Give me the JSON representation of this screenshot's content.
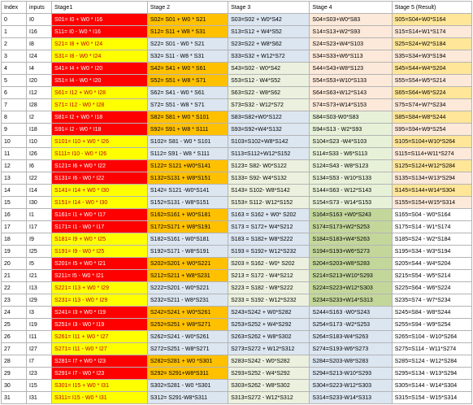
{
  "headers": [
    "Index",
    "inputs",
    "Stage1",
    "Stage 2",
    "Stage 3",
    "Stage 4",
    "Stage 5 (Result)"
  ],
  "colors": {
    "s1_bg": [
      "#ff0000",
      "#ffff00"
    ],
    "s1_text": [
      "#ffffff",
      "#c00000"
    ],
    "s2": [
      "#ffc000",
      "#dce6f1"
    ],
    "s3": [
      "#dce6f1",
      "#ebf1de"
    ],
    "s4": [
      "#fde9d9",
      "#e7f1d8",
      "#c4d79b",
      "#dce6f1"
    ],
    "s5": [
      "#ffffff",
      "#fde9d9",
      "#ffe699"
    ]
  },
  "rows": [
    [
      "0",
      "I0",
      "S01= I0 + W0 * I16",
      "S02= S01 + W0 * S21",
      "S03=S02 + W0*S42",
      "S04=S03+W0*S83",
      "S05=S04+W0*S164"
    ],
    [
      "1",
      "I16",
      "S11= I0 - W0 * I16",
      "S12= S11 + W8 * S31",
      "S13=S12 + W4*S52",
      "S14=S13+W2*S93",
      "S15=S14+W1*S174"
    ],
    [
      "2",
      "I8",
      "S21= I8 + W0 * I24",
      "S22= S01 - W0 * S21",
      "S23=S22 + W8*S62",
      "S24=S23+W4*S103",
      "S25=S24+W2*S184"
    ],
    [
      "3",
      "I24",
      "S31= I8 - W0 * I24",
      "S32= S11 - W8 * S31",
      "S33=S32 + W12*S72",
      "S34=S33+W6*S113",
      "S35=S34+W3*S194"
    ],
    [
      "4",
      "I4",
      "S41= I4 + W0 * I20",
      "S42= S41 + W0 * S61",
      "S43=S02 - W0*S42",
      "S44=S43+W8*S123",
      "S45=S44+W4*S204"
    ],
    [
      "5",
      "I20",
      "S51= I4 - W0 * I20",
      "S52= S51 + W8 * S71",
      "S53=S12 - W4*S52",
      "S54=S53+W10*S133",
      "S55=S54+W5*S214"
    ],
    [
      "6",
      "I12",
      "S61= I12 + W0 * I28",
      "S62= S41 - W0 * S61",
      "S63=S22 - W8*S62",
      "S64=S63+W12*S143",
      "S65=S64+W6*S224"
    ],
    [
      "7",
      "I28",
      "S71= I12 - W0 * I28",
      "S72= S51 - W8 * S71",
      "S73=S32 - W12*S72",
      "S74=S73+W14*S153",
      "S75=S74+W7*S234"
    ],
    [
      "8",
      "I2",
      "S81= I2 + W0 * I18",
      "S82= S81 + W0 * S101",
      "S83=S82+W0*S122",
      "S84=S03-W0*S83",
      "S85=S84+W8*S244"
    ],
    [
      "9",
      "I18",
      "S91= I2 - W0 * I18",
      "S92= S91 + W8 * S111",
      "S93=S92+W4*S132",
      "S94=S13 - W2*S93",
      "S95=S94+W9*S254"
    ],
    [
      "10",
      "I10",
      "S101= I10 + W0 * I26",
      "S102= S81 - W0 * S101",
      "S103=S102+W8*S142",
      "S104=S23 -W4*S103",
      "S105=S104+W10*S264"
    ],
    [
      "11",
      "I26",
      "S111= I10 - W0 * I26",
      "S112= S91 - W8 * S111",
      "S113=S112+W12*S152",
      "S114=S33 - W6*S113",
      "S115=S114+W11*S274"
    ],
    [
      "12",
      "I6",
      "S121= I6 + W0 * I22",
      "S122= S121 +W0*S141",
      "S123= S82- W0*S122",
      "S124=S43 - W8*S123",
      "S125=S124+W12*S284"
    ],
    [
      "13",
      "I22",
      "S131= I6 - W0 * I22",
      "S132=S131 + W8*S151",
      "S133= S92- W4*S132",
      "S134=S53 - W10*S133",
      "S135=S134+W13*S294"
    ],
    [
      "14",
      "I14",
      "S141= I14 + W0 * I30",
      "S142= S121 -W0*S141",
      "S143= S102- W8*S142",
      "S144=S63 - W12*S143",
      "S145=S144+W14*S304"
    ],
    [
      "15",
      "I30",
      "S151= I14 - W0 * I30",
      "S152=S131 - W8*S151",
      "S153= S112- W12*S152",
      "S154=S73 - W14*S153",
      "S155=S154+W15*S314"
    ],
    [
      "16",
      "I1",
      "S161= I1 + W0 * I17",
      "S162=S161 + W0*S181",
      "S163 = S162 + W0* S202",
      "S164=S163 +W0*S243",
      "S165=S04 - W0*S164"
    ],
    [
      "17",
      "I17",
      "S171= I1 - W0 * I17",
      "S172=S171 + W8*S191",
      "S173 = S172+ W4*S212",
      "S174=S173+W2*S253",
      "S175=S14 - W1*S174"
    ],
    [
      "18",
      "I9",
      "S181= I9 + W0 * I25",
      "S182=S161 - W0*S181",
      "S183 = S182+ W8*S222",
      "S184=S183+W4*S263",
      "S185=S24 - W2*S184"
    ],
    [
      "19",
      "I25",
      "S191= I9 - W0 * I25",
      "S192=S171 - W8*S191",
      "S193 = S192+ W12*S232",
      "S194=S193+W6*S273",
      "S195=S34 - W3*S194"
    ],
    [
      "20",
      "I5",
      "S201= I5 + W0 * I21",
      "S202=S201 + W0*S221",
      "S203 = S162 - W0* S202",
      "S204=S203+W8*S283",
      "S205=S44 - W4*S204"
    ],
    [
      "21",
      "I21",
      "S211= I5 - W0 * I21",
      "S212=S211 + W8*S231",
      "S213 = S172 - W4*S212",
      "S214=S213+W10*S293",
      "S215=S54 - W5*S214"
    ],
    [
      "22",
      "I13",
      "S221= I13 + W0 * I29",
      "S222=S201 - W0*S221",
      "S223 = S182 - W8*S222",
      "S224=S223+W12*S303",
      "S225=S64 - W6*S224"
    ],
    [
      "23",
      "I29",
      "S231= I13 - W0 * I29",
      "S232=S211 - W8*S231",
      "S233 = S192 - W12*S232",
      "S234=S233+W14*S313",
      "S235=S74 - W7*S234"
    ],
    [
      "24",
      "I3",
      "S241= I3 + W0 * I19",
      "S242=S241 + W0*S261",
      "S243=S242 + W0*S282",
      "S244=S163 -W0*S243",
      "S245=S84 - W8*S244"
    ],
    [
      "25",
      "I19",
      "S251= I3 - W0 * I19",
      "S252=S251 + W8*S271",
      "S253=S252 + W4*S292",
      "S254=S173 -W2*S253",
      "S255=S94 - W9*S254"
    ],
    [
      "26",
      "I11",
      "S261= I11 + W0 * I27",
      "S262=S241 - W0*S261",
      "S263=S262 + W8*S302",
      "S264=S183-W4*S263",
      "S265=S104 - W10*S264"
    ],
    [
      "27",
      "I27",
      "S271= I11 - W0 * I27",
      "S272=S251 - W8*S271",
      "S273=S272 + W12*S312",
      "S274=S193-W6*S273",
      "S275=S114 - W11*S274"
    ],
    [
      "28",
      "I7",
      "S281= I7 + W0 * I23",
      "S282=S281 + W0 *S301",
      "S283=S242 - W0*S282",
      "S284=S203-W8*S283",
      "S285=S124 - W12*S284"
    ],
    [
      "29",
      "I23",
      "S291= I7 - W0 * I23",
      "S292= S291+W8*S311",
      "S293=S252 - W4*S292",
      "S294=S213-W10*S293",
      "S295=S134 - W13*S294"
    ],
    [
      "30",
      "I15",
      "S301= I15 + W0 * I31",
      "S302=S281 - W0 *S301",
      "S303=S262 - W8*S302",
      "S304=S223-W12*S303",
      "S305=S144 - W14*S304"
    ],
    [
      "31",
      "I31",
      "S311= I15 - W0 * I31",
      "S312= S291-W8*S311",
      "S313=S272 - W12*S312",
      "S314=S233-W14*S313",
      "S315=S154 - W15*S314"
    ]
  ]
}
